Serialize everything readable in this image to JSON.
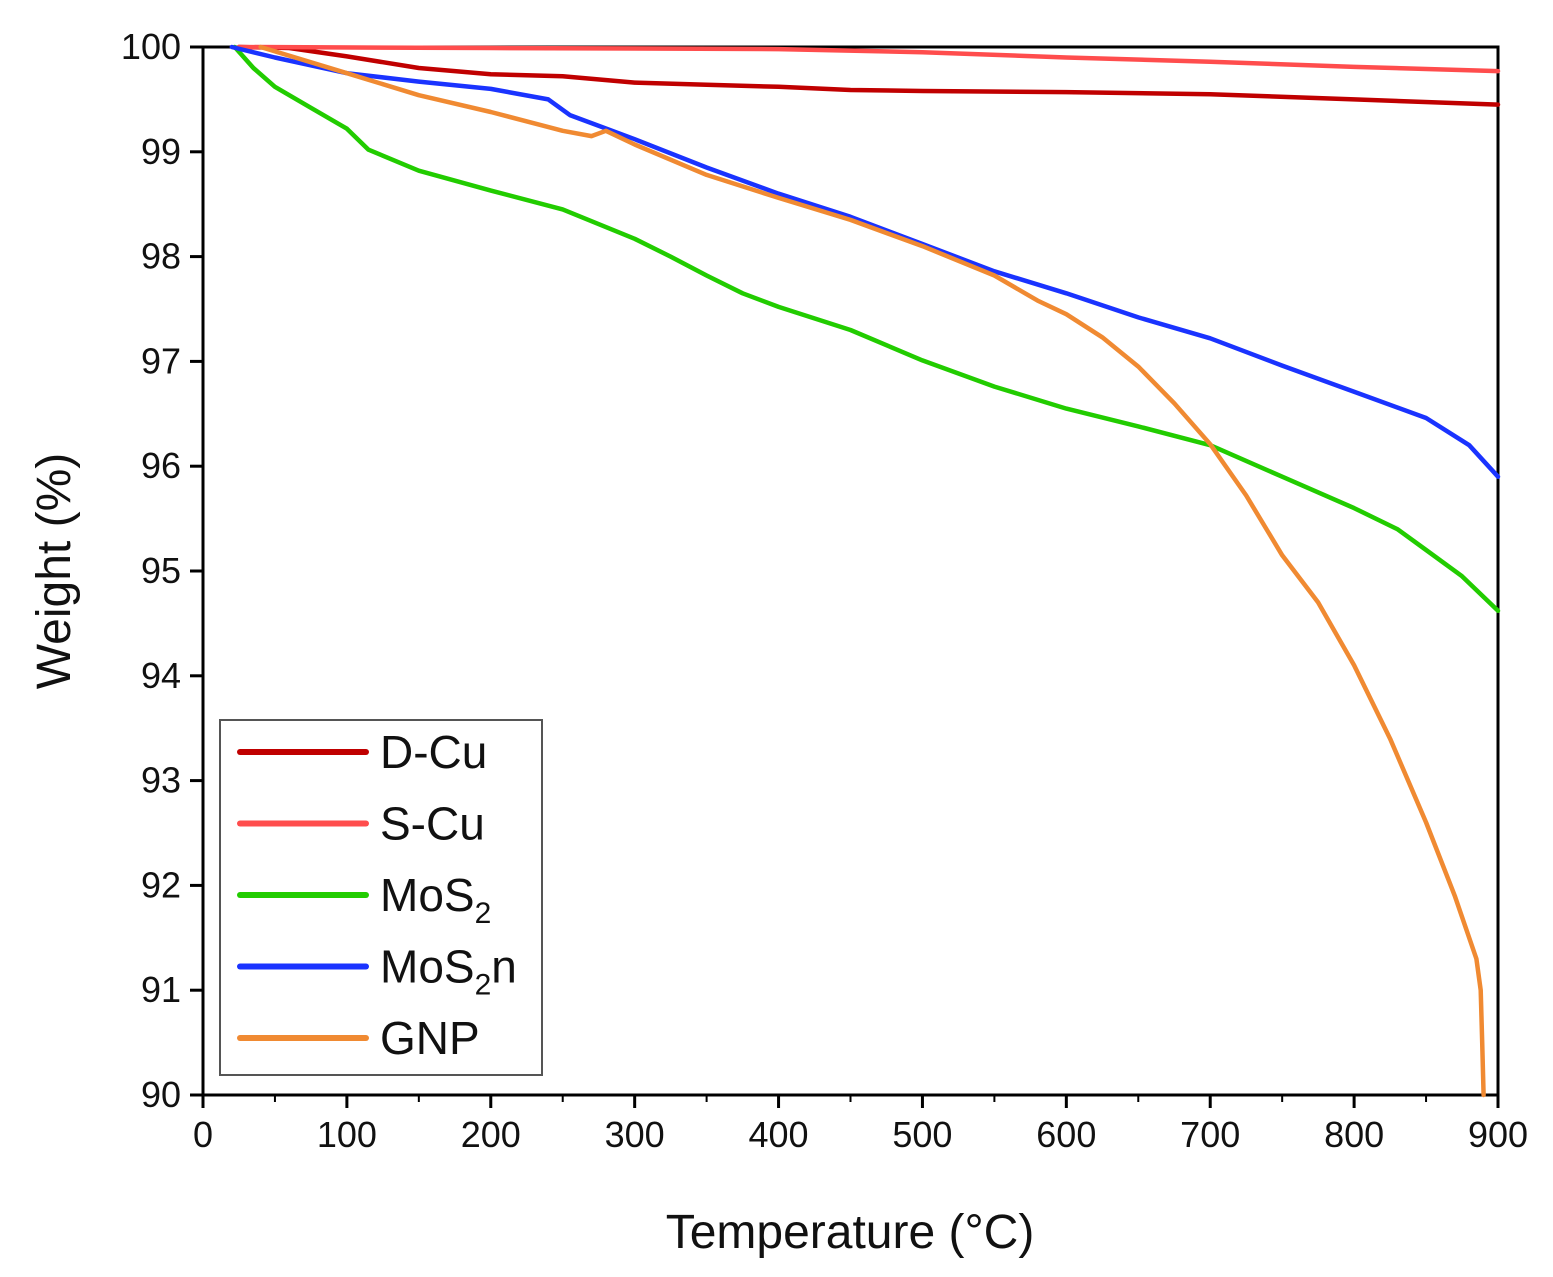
{
  "chart_data": {
    "type": "line",
    "title": "",
    "xlabel": "Temperature (°C)",
    "ylabel": "Weight (%)",
    "xlim": [
      0,
      900
    ],
    "ylim": [
      90,
      100
    ],
    "xticks": [
      0,
      100,
      200,
      300,
      400,
      500,
      600,
      700,
      800,
      900
    ],
    "yticks": [
      90,
      91,
      92,
      93,
      94,
      95,
      96,
      97,
      98,
      99,
      100
    ],
    "grid": false,
    "legend_position": "bottom-left",
    "series": [
      {
        "name": "D-Cu",
        "label_main": "D-Cu",
        "label_sub": "",
        "label_tail": "",
        "color": "#c00000",
        "points": [
          [
            25,
            100
          ],
          [
            60,
            99.99
          ],
          [
            100,
            99.91
          ],
          [
            150,
            99.8
          ],
          [
            200,
            99.74
          ],
          [
            250,
            99.72
          ],
          [
            300,
            99.66
          ],
          [
            350,
            99.64
          ],
          [
            400,
            99.62
          ],
          [
            450,
            99.59
          ],
          [
            500,
            99.58
          ],
          [
            600,
            99.57
          ],
          [
            700,
            99.55
          ],
          [
            800,
            99.5
          ],
          [
            900,
            99.45
          ]
        ]
      },
      {
        "name": "S-Cu",
        "label_main": "S-Cu",
        "label_sub": "",
        "label_tail": "",
        "color": "#ff4d4d",
        "points": [
          [
            25,
            100
          ],
          [
            200,
            99.99
          ],
          [
            400,
            99.98
          ],
          [
            500,
            99.95
          ],
          [
            600,
            99.9
          ],
          [
            700,
            99.86
          ],
          [
            800,
            99.81
          ],
          [
            900,
            99.77
          ]
        ]
      },
      {
        "name": "MoS2",
        "label_main": "MoS",
        "label_sub": "2",
        "label_tail": "",
        "color": "#22cc00",
        "points": [
          [
            22,
            100
          ],
          [
            35,
            99.8
          ],
          [
            50,
            99.62
          ],
          [
            75,
            99.42
          ],
          [
            100,
            99.22
          ],
          [
            115,
            99.02
          ],
          [
            150,
            98.82
          ],
          [
            200,
            98.63
          ],
          [
            250,
            98.45
          ],
          [
            300,
            98.17
          ],
          [
            325,
            98.0
          ],
          [
            350,
            97.82
          ],
          [
            375,
            97.65
          ],
          [
            400,
            97.52
          ],
          [
            450,
            97.3
          ],
          [
            500,
            97.01
          ],
          [
            550,
            96.76
          ],
          [
            600,
            96.55
          ],
          [
            650,
            96.38
          ],
          [
            700,
            96.2
          ],
          [
            750,
            95.9
          ],
          [
            800,
            95.6
          ],
          [
            830,
            95.4
          ],
          [
            850,
            95.2
          ],
          [
            875,
            94.95
          ],
          [
            900,
            94.62
          ]
        ]
      },
      {
        "name": "MoS2n",
        "label_main": "MoS",
        "label_sub": "2",
        "label_tail": "n",
        "color": "#1a33ff",
        "points": [
          [
            20,
            100
          ],
          [
            50,
            99.9
          ],
          [
            100,
            99.75
          ],
          [
            150,
            99.67
          ],
          [
            200,
            99.6
          ],
          [
            240,
            99.5
          ],
          [
            255,
            99.35
          ],
          [
            300,
            99.12
          ],
          [
            350,
            98.85
          ],
          [
            400,
            98.6
          ],
          [
            450,
            98.38
          ],
          [
            500,
            98.12
          ],
          [
            550,
            97.86
          ],
          [
            600,
            97.65
          ],
          [
            650,
            97.42
          ],
          [
            700,
            97.22
          ],
          [
            750,
            96.96
          ],
          [
            800,
            96.71
          ],
          [
            850,
            96.46
          ],
          [
            880,
            96.2
          ],
          [
            900,
            95.9
          ]
        ]
      },
      {
        "name": "GNP",
        "label_main": "GNP",
        "label_sub": "",
        "label_tail": "",
        "color": "#f08a32",
        "points": [
          [
            40,
            100
          ],
          [
            100,
            99.75
          ],
          [
            150,
            99.54
          ],
          [
            200,
            99.38
          ],
          [
            250,
            99.2
          ],
          [
            270,
            99.15
          ],
          [
            280,
            99.2
          ],
          [
            300,
            99.07
          ],
          [
            350,
            98.78
          ],
          [
            400,
            98.56
          ],
          [
            450,
            98.35
          ],
          [
            500,
            98.1
          ],
          [
            550,
            97.82
          ],
          [
            580,
            97.58
          ],
          [
            600,
            97.45
          ],
          [
            625,
            97.23
          ],
          [
            650,
            96.95
          ],
          [
            675,
            96.6
          ],
          [
            700,
            96.21
          ],
          [
            725,
            95.72
          ],
          [
            750,
            95.15
          ],
          [
            775,
            94.7
          ],
          [
            800,
            94.1
          ],
          [
            825,
            93.4
          ],
          [
            850,
            92.6
          ],
          [
            870,
            91.9
          ],
          [
            885,
            91.3
          ],
          [
            888,
            91.0
          ],
          [
            889,
            90.5
          ],
          [
            890,
            90.0
          ]
        ]
      }
    ]
  }
}
